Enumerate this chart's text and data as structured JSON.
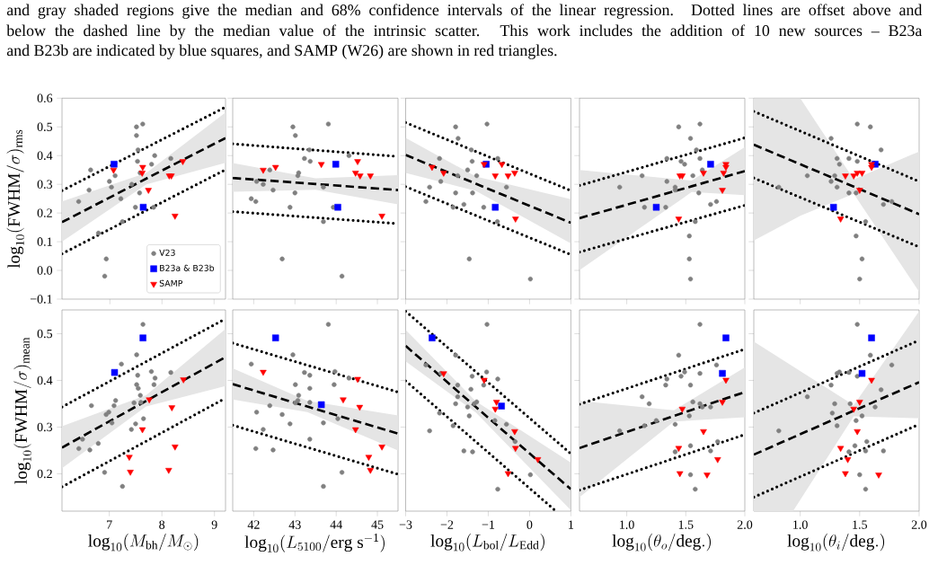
{
  "chart_data": [
    {
      "type": "scatter",
      "annotations": [
        "and gray shaded regions give the median and 68% confidence intervals of the linear regression. Dotted lines are offset above and",
        "below the dashed line by the median value of the intrinsic scatter. This work includes the addition of 10 new sources – B23a",
        "and B23b are indicated by blue squares, and SAMP (W26) are shown in red triangles."
      ],
      "ylabel": "\\log_{10}(\\mathrm{FWHM}/\\sigma)_{\\mathrm{rms}}",
      "xlim": [
        6.08,
        9.22
      ],
      "ylim": [
        -0.1,
        0.6
      ],
      "xticks": [
        7,
        8,
        9
      ],
      "yticks": [
        {
          "value": -0.1,
          "label": "−0.1"
        },
        {
          "value": 0,
          "label": "0.0"
        },
        0.1,
        0.2,
        0.3,
        0.4,
        0.5,
        0.6
      ],
      "tick_labels": "y",
      "legend": "bottom right",
      "series": [
        {
          "name": "V23",
          "color": "#808080",
          "marker": "circle",
          "x": [
            6.4,
            6.6,
            6.63,
            6.99,
            7.03,
            7.1,
            7.21,
            7.24,
            6.78,
            6.93,
            6.9,
            7.42,
            7.49,
            7.51,
            7.51,
            7.54,
            7.53,
            7.57,
            7.58,
            7.63,
            7.8,
            7.86,
            7.84,
            8.17
          ],
          "values": [
            0.24,
            0.28,
            0.35,
            0.31,
            0.29,
            0.33,
            0.25,
            0.17,
            0.13,
            0.04,
            -0.02,
            0.3,
            0.22,
            0.5,
            0.47,
            0.42,
            0.38,
            0.27,
            0.34,
            0.51,
            0.37,
            0.4,
            0.22,
            0.39
          ]
        },
        {
          "name": "B23a & B23b",
          "color": "#0000ff",
          "marker": "square",
          "x": [
            7.08,
            7.64
          ],
          "values": [
            0.37,
            0.22
          ]
        },
        {
          "name": "SAMP",
          "color": "#ff0000",
          "marker": "triangle",
          "x": [
            7.07,
            7.63,
            7.62,
            7.74,
            8.14,
            8.18,
            8.4,
            8.25
          ],
          "values": [
            0.35,
            0.36,
            0.34,
            0.28,
            0.33,
            0.33,
            0.38,
            0.19
          ]
        },
        {
          "type": "line",
          "color": "#000000",
          "line_style": "dashed",
          "x": [
            6.08,
            7.7,
            9.22
          ],
          "values": [
            0.168,
            0.32,
            0.461
          ],
          "lower": [
            0.1,
            0.3,
            0.375
          ],
          "upper": [
            0.24,
            0.34,
            0.55
          ]
        },
        {
          "type": "line",
          "color": "#000000",
          "line_style": "dotted",
          "x": [
            6.08,
            9.22
          ],
          "values": [
            0.278,
            0.569
          ]
        },
        {
          "type": "line",
          "color": "#000000",
          "line_style": "dotted",
          "x": [
            6.08,
            9.22
          ],
          "values": [
            0.058,
            0.351
          ]
        }
      ]
    },
    {
      "type": "scatter",
      "xlim": [
        41.49,
        45.5
      ],
      "ylim": [
        -0.1,
        0.6
      ],
      "xticks": [
        42,
        43,
        44,
        45
      ],
      "yticks": [
        -0.1,
        0,
        0.1,
        0.2,
        0.3,
        0.4,
        0.5,
        0.6
      ],
      "tick_labels": false,
      "series": [
        {
          "color": "#808080",
          "marker": "circle",
          "x": [
            41.94,
            42.05,
            42.07,
            42.23,
            42.39,
            42.47,
            42.69,
            42.88,
            42.95,
            43.01,
            43.0,
            43.07,
            43.09,
            43.23,
            43.35,
            43.37,
            43.69,
            43.69,
            43.81,
            43.93,
            44.14,
            44.31
          ],
          "values": [
            0.25,
            0.24,
            0.31,
            0.3,
            0.35,
            0.28,
            0.04,
            0.22,
            0.5,
            0.47,
            0.27,
            0.33,
            0.34,
            0.39,
            0.42,
            0.38,
            0.29,
            0.17,
            0.51,
            0.22,
            -0.02,
            0.4
          ]
        },
        {
          "color": "#0000ff",
          "marker": "square",
          "x": [
            43.99,
            44.04
          ],
          "values": [
            0.37,
            0.22
          ]
        },
        {
          "color": "#ff0000",
          "marker": "triangle",
          "x": [
            42.23,
            42.53,
            43.64,
            44.47,
            44.52,
            44.58,
            44.83,
            45.11
          ],
          "values": [
            0.35,
            0.36,
            0.37,
            0.34,
            0.38,
            0.33,
            0.33,
            0.19
          ]
        },
        {
          "type": "line",
          "color": "#000000",
          "line_style": "dashed",
          "x": [
            41.49,
            43.5,
            45.5
          ],
          "values": [
            0.322,
            0.301,
            0.28
          ],
          "lower": [
            0.274,
            0.281,
            0.23
          ],
          "upper": [
            0.374,
            0.321,
            0.332
          ]
        },
        {
          "type": "line",
          "color": "#000000",
          "line_style": "dotted",
          "x": [
            41.49,
            45.5
          ],
          "values": [
            0.441,
            0.397
          ]
        },
        {
          "type": "line",
          "color": "#000000",
          "line_style": "dotted",
          "x": [
            41.49,
            45.5
          ],
          "values": [
            0.205,
            0.163
          ]
        }
      ]
    },
    {
      "type": "scatter",
      "xlim": [
        -3,
        1
      ],
      "ylim": [
        -0.1,
        0.6
      ],
      "xticks": [
        -3,
        -2,
        -1,
        0,
        1
      ],
      "yticks": [
        -0.1,
        0,
        0.1,
        0.2,
        0.3,
        0.4,
        0.5,
        0.6
      ],
      "tick_labels": false,
      "series": [
        {
          "color": "#808080",
          "marker": "circle",
          "x": [
            -2.51,
            -2.42,
            -2.18,
            -2.15,
            -1.79,
            -1.73,
            -1.74,
            -1.79,
            -1.85,
            -1.59,
            -1.5,
            -1.46,
            -1.41,
            -1.39,
            -1.38,
            -1.28,
            -1.11,
            -1.03,
            -0.77,
            -0.78,
            -0.56,
            0.02
          ],
          "values": [
            0.24,
            0.29,
            0.39,
            0.31,
            0.5,
            0.46,
            0.33,
            0.27,
            0.22,
            0.23,
            0.35,
            0.04,
            0.42,
            0.38,
            0.27,
            0.33,
            0.22,
            0.51,
            0.39,
            0.17,
            0.29,
            -0.03
          ]
        },
        {
          "color": "#0000ff",
          "marker": "square",
          "x": [
            -1.05,
            -0.83
          ],
          "values": [
            0.37,
            0.22
          ]
        },
        {
          "color": "#ff0000",
          "marker": "triangle",
          "x": [
            -2.36,
            -2.08,
            -1.1,
            -0.83,
            -0.67,
            -0.52,
            -0.36,
            -0.34
          ],
          "values": [
            0.36,
            0.34,
            0.37,
            0.33,
            0.37,
            0.33,
            0.34,
            0.18
          ]
        },
        {
          "type": "line",
          "color": "#000000",
          "line_style": "dashed",
          "x": [
            -3,
            -1.3,
            1
          ],
          "values": [
            0.402,
            0.302,
            0.166
          ],
          "lower": [
            0.34,
            0.277,
            0.094
          ],
          "upper": [
            0.462,
            0.327,
            0.248
          ]
        },
        {
          "type": "line",
          "color": "#000000",
          "line_style": "dotted",
          "x": [
            -3,
            1
          ],
          "values": [
            0.515,
            0.278
          ]
        },
        {
          "type": "line",
          "color": "#000000",
          "line_style": "dotted",
          "x": [
            -3,
            1
          ],
          "values": [
            0.292,
            0.055
          ]
        }
      ]
    },
    {
      "type": "scatter",
      "xlim": [
        0.6,
        2.0
      ],
      "ylim": [
        -0.1,
        0.6
      ],
      "xticks": [
        1.0,
        1.5,
        2.0
      ],
      "yticks": [
        -0.1,
        0,
        0.1,
        0.2,
        0.3,
        0.4,
        0.5,
        0.6
      ],
      "tick_labels": false,
      "series": [
        {
          "color": "#808080",
          "marker": "circle",
          "x": [
            0.94,
            1.13,
            1.15,
            1.33,
            1.34,
            1.34,
            1.41,
            1.41,
            1.44,
            1.46,
            1.49,
            1.53,
            1.53,
            1.54,
            1.54,
            1.56,
            1.58,
            1.59,
            1.61,
            1.62,
            1.62,
            1.64,
            1.71,
            1.76
          ],
          "values": [
            0.29,
            0.33,
            0.22,
            0.22,
            0.39,
            0.31,
            0.29,
            0.28,
            0.5,
            0.38,
            0.37,
            0.12,
            0.04,
            -0.03,
            0.46,
            0.33,
            0.17,
            0.42,
            0.27,
            0.51,
            0.39,
            0.35,
            0.23,
            0.24
          ]
        },
        {
          "color": "#0000ff",
          "marker": "square",
          "x": [
            1.25,
            1.71
          ],
          "values": [
            0.22,
            0.37
          ]
        },
        {
          "color": "#ff0000",
          "marker": "triangle",
          "x": [
            1.44,
            1.45,
            1.47,
            1.65,
            1.81,
            1.82,
            1.84,
            1.84
          ],
          "values": [
            0.18,
            0.33,
            0.33,
            0.34,
            0.28,
            0.34,
            0.36,
            0.37
          ]
        },
        {
          "type": "line",
          "color": "#000000",
          "line_style": "dashed",
          "x": [
            0.6,
            1.55,
            2.0
          ],
          "values": [
            0.182,
            0.293,
            0.346
          ],
          "lower": [
            0.001,
            0.273,
            0.262
          ],
          "upper": [
            0.35,
            0.313,
            0.43
          ]
        },
        {
          "type": "line",
          "color": "#000000",
          "line_style": "dotted",
          "x": [
            0.6,
            2.0
          ],
          "values": [
            0.296,
            0.462
          ]
        },
        {
          "type": "line",
          "color": "#000000",
          "line_style": "dotted",
          "x": [
            0.6,
            2.0
          ],
          "values": [
            0.064,
            0.227
          ]
        }
      ]
    },
    {
      "type": "scatter",
      "xlim": [
        0.61,
        2.0
      ],
      "ylim": [
        -0.1,
        0.6
      ],
      "xticks": [
        1.0,
        1.5,
        2.0
      ],
      "yticks": [
        -0.1,
        0,
        0.1,
        0.2,
        0.3,
        0.4,
        0.5,
        0.6
      ],
      "tick_labels": false,
      "series": [
        {
          "color": "#808080",
          "marker": "circle",
          "x": [
            0.82,
            1.06,
            1.26,
            1.26,
            1.29,
            1.31,
            1.31,
            1.33,
            1.41,
            1.41,
            1.47,
            1.47,
            1.48,
            1.48,
            1.5,
            1.52,
            1.55,
            1.59,
            1.68,
            1.7,
            1.77
          ],
          "values": [
            0.29,
            0.33,
            0.46,
            0.31,
            0.33,
            0.29,
            0.39,
            0.37,
            0.39,
            0.27,
            0.27,
            0.12,
            0.51,
            0.38,
            -0.03,
            0.04,
            0.17,
            0.5,
            0.42,
            0.23,
            0.24
          ]
        },
        {
          "color": "#0000ff",
          "marker": "square",
          "x": [
            1.28,
            1.63
          ],
          "values": [
            0.22,
            0.37
          ]
        },
        {
          "color": "#ff0000",
          "marker": "triangle",
          "x": [
            1.34,
            1.38,
            1.45,
            1.48,
            1.5,
            1.52,
            1.6,
            1.6
          ],
          "values": [
            0.18,
            0.33,
            0.33,
            0.34,
            0.28,
            0.34,
            0.36,
            0.37
          ]
        },
        {
          "type": "line",
          "color": "#000000",
          "line_style": "dashed",
          "x": [
            0.61,
            1.0,
            1.45,
            2.0
          ],
          "values": [
            0.438,
            0.37,
            0.292,
            0.196
          ],
          "lower": [
            0.104,
            0.19,
            0.267,
            -0.074
          ],
          "upper": [
            0.6,
            0.6,
            0.317,
            0.414
          ]
        },
        {
          "type": "line",
          "color": "#000000",
          "line_style": "dotted",
          "x": [
            0.61,
            2.0
          ],
          "values": [
            0.554,
            0.31
          ]
        },
        {
          "type": "line",
          "color": "#000000",
          "line_style": "dotted",
          "x": [
            0.61,
            2.0
          ],
          "values": [
            0.322,
            0.082
          ]
        }
      ]
    },
    {
      "type": "scatter",
      "xlabel": "\\log_{10}(M_{\\mathrm{bh}}/M_{\\odot})",
      "ylabel": "\\log_{10}(\\mathrm{FWHM}/\\sigma)_{\\mathrm{mean}}",
      "xlim": [
        6.1,
        9.21
      ],
      "ylim": [
        0.12,
        0.551
      ],
      "xticks": [
        7,
        8,
        9
      ],
      "yticks": [
        0.2,
        0.3,
        0.4,
        0.5
      ],
      "series": [
        {
          "color": "#808080",
          "marker": "circle",
          "x": [
            6.42,
            6.49,
            6.63,
            6.66,
            6.79,
            6.91,
            6.94,
            6.99,
            7.05,
            7.09,
            7.12,
            7.23,
            7.25,
            7.42,
            7.47,
            7.5,
            7.52,
            7.52,
            7.54,
            7.55,
            7.59,
            7.6,
            7.64,
            7.65,
            7.8,
            7.85,
            7.87,
            8.17
          ],
          "values": [
            0.254,
            0.274,
            0.251,
            0.346,
            0.265,
            0.203,
            0.327,
            0.332,
            0.309,
            0.346,
            0.357,
            0.435,
            0.173,
            0.295,
            0.352,
            0.307,
            0.455,
            0.391,
            0.411,
            0.383,
            0.368,
            0.353,
            0.52,
            0.318,
            0.419,
            0.391,
            0.405,
            0.417
          ]
        },
        {
          "color": "#0000ff",
          "marker": "square",
          "x": [
            7.1,
            7.64
          ],
          "values": [
            0.417,
            0.491
          ]
        },
        {
          "color": "#ff0000",
          "marker": "triangle",
          "x": [
            7.38,
            7.4,
            7.63,
            7.76,
            8.13,
            8.19,
            8.25,
            8.41
          ],
          "values": [
            0.236,
            0.204,
            0.295,
            0.359,
            0.208,
            0.342,
            0.258,
            0.402
          ]
        },
        {
          "type": "line",
          "color": "#000000",
          "line_style": "dashed",
          "x": [
            6.1,
            7.7,
            9.21
          ],
          "values": [
            0.256,
            0.356,
            0.45
          ],
          "lower": [
            0.212,
            0.344,
            0.388
          ],
          "upper": [
            0.302,
            0.368,
            0.51
          ]
        },
        {
          "type": "line",
          "color": "#000000",
          "line_style": "dotted",
          "x": [
            6.1,
            9.21
          ],
          "values": [
            0.343,
            0.532
          ]
        },
        {
          "type": "line",
          "color": "#000000",
          "line_style": "dotted",
          "x": [
            6.1,
            9.21
          ],
          "values": [
            0.172,
            0.362
          ]
        }
      ]
    },
    {
      "type": "scatter",
      "xlabel": "\\log_{10}(L_{5100}/\\mathrm{erg\\ s^{-1}})",
      "xlim": [
        41.49,
        45.5
      ],
      "ylim": [
        0.12,
        0.551
      ],
      "xticks": [
        42,
        43,
        44,
        45
      ],
      "yticks": [
        0.2,
        0.3,
        0.4,
        0.5
      ],
      "tick_labels": "x",
      "series": [
        {
          "color": "#808080",
          "marker": "circle",
          "x": [
            41.94,
            42.05,
            42.07,
            42.23,
            42.39,
            42.47,
            42.69,
            42.88,
            42.95,
            43.01,
            43.01,
            43.07,
            43.09,
            43.23,
            43.36,
            43.36,
            43.36,
            43.36,
            43.69,
            43.69,
            43.81,
            43.95,
            43.97,
            44.04,
            44.14,
            44.31
          ],
          "values": [
            0.435,
            0.254,
            0.332,
            0.295,
            0.346,
            0.251,
            0.327,
            0.307,
            0.455,
            0.391,
            0.352,
            0.357,
            0.368,
            0.417,
            0.411,
            0.383,
            0.353,
            0.274,
            0.309,
            0.173,
            0.52,
            0.391,
            0.419,
            0.318,
            0.203,
            0.405
          ]
        },
        {
          "color": "#0000ff",
          "marker": "square",
          "x": [
            42.53,
            43.64
          ],
          "values": [
            0.491,
            0.348
          ]
        },
        {
          "color": "#ff0000",
          "marker": "triangle",
          "x": [
            42.23,
            44.17,
            44.47,
            44.52,
            44.57,
            44.79,
            44.83,
            45.11
          ],
          "values": [
            0.418,
            0.359,
            0.295,
            0.403,
            0.343,
            0.236,
            0.208,
            0.258
          ]
        },
        {
          "type": "line",
          "color": "#000000",
          "line_style": "dashed",
          "x": [
            41.49,
            43.3,
            45.5
          ],
          "values": [
            0.392,
            0.344,
            0.286
          ],
          "lower": [
            0.359,
            0.332,
            0.25
          ],
          "upper": [
            0.426,
            0.356,
            0.325
          ]
        },
        {
          "type": "line",
          "color": "#000000",
          "line_style": "dotted",
          "x": [
            41.49,
            45.5
          ],
          "values": [
            0.48,
            0.375
          ]
        },
        {
          "type": "line",
          "color": "#000000",
          "line_style": "dotted",
          "x": [
            41.49,
            45.5
          ],
          "values": [
            0.304,
            0.199
          ]
        }
      ]
    },
    {
      "type": "scatter",
      "xlabel": "\\log_{10}(L_{\\mathrm{bol}}/L_{\\mathrm{Edd}})",
      "xlim": [
        -3,
        1
      ],
      "ylim": [
        0.12,
        0.551
      ],
      "xticks": [
        {
          "value": -3,
          "label": "−3"
        },
        {
          "value": -2,
          "label": "−2"
        },
        {
          "value": -1,
          "label": "−1"
        },
        0,
        1
      ],
      "yticks": [
        0.2,
        0.3,
        0.4,
        0.5
      ],
      "tick_labels": "x",
      "series": [
        {
          "color": "#808080",
          "marker": "circle",
          "x": [
            -2.51,
            -2.42,
            -2.18,
            -2.15,
            -1.85,
            -1.79,
            -1.79,
            -1.74,
            -1.74,
            -1.59,
            -1.5,
            -1.46,
            -1.42,
            -1.39,
            -1.38,
            -1.34,
            -1.28,
            -1.11,
            -1.04,
            -1.03,
            -0.84,
            -0.77,
            -0.77,
            -0.56,
            -0.35,
            0.02
          ],
          "values": [
            0.433,
            0.292,
            0.33,
            0.415,
            0.303,
            0.454,
            0.35,
            0.365,
            0.39,
            0.249,
            0.343,
            0.324,
            0.381,
            0.409,
            0.247,
            0.35,
            0.354,
            0.39,
            0.418,
            0.52,
            0.314,
            0.403,
            0.167,
            0.306,
            0.269,
            0.198
          ]
        },
        {
          "color": "#0000ff",
          "marker": "square",
          "x": [
            -2.36,
            -0.68
          ],
          "values": [
            0.491,
            0.345
          ]
        },
        {
          "color": "#ff0000",
          "marker": "triangle",
          "x": [
            -2.08,
            -1.1,
            -0.83,
            -0.8,
            -0.36,
            -0.34,
            -0.52,
            0.2
          ],
          "values": [
            0.415,
            0.401,
            0.339,
            0.354,
            0.291,
            0.255,
            0.201,
            0.231
          ]
        },
        {
          "type": "line",
          "color": "#000000",
          "line_style": "dashed",
          "x": [
            -3,
            -1.3,
            1
          ],
          "values": [
            0.474,
            0.343,
            0.167
          ],
          "lower": [
            0.441,
            0.331,
            0.122
          ],
          "upper": [
            0.508,
            0.355,
            0.224
          ]
        },
        {
          "type": "line",
          "color": "#000000",
          "line_style": "dotted",
          "x": [
            -3,
            1
          ],
          "values": [
            0.548,
            0.243
          ]
        },
        {
          "type": "line",
          "color": "#000000",
          "line_style": "dotted",
          "x": [
            -3,
            0.6
          ],
          "values": [
            0.399,
            0.123
          ]
        }
      ]
    },
    {
      "type": "scatter",
      "xlabel": "\\log_{10}(\\theta_o/\\mathrm{deg.})",
      "xlim": [
        0.6,
        2.0
      ],
      "ylim": [
        0.12,
        0.551
      ],
      "xticks": [
        {
          "value": 1,
          "label": "1.0"
        },
        1.5,
        {
          "value": 2,
          "label": "2.0"
        }
      ],
      "yticks": [
        0.2,
        0.3,
        0.4,
        0.5
      ],
      "tick_labels": "x",
      "series": [
        {
          "color": "#808080",
          "marker": "circle",
          "x": [
            0.94,
            1.13,
            1.19,
            1.15,
            1.25,
            1.33,
            1.34,
            1.41,
            1.41,
            1.44,
            1.46,
            1.49,
            1.53,
            1.54,
            1.54,
            1.54,
            1.56,
            1.58,
            1.62,
            1.62,
            1.62,
            1.64,
            1.71,
            1.71,
            1.76,
            1.77
          ],
          "values": [
            0.292,
            0.365,
            0.35,
            0.303,
            0.314,
            0.39,
            0.403,
            0.306,
            0.247,
            0.454,
            0.409,
            0.418,
            0.324,
            0.26,
            0.198,
            0.39,
            0.354,
            0.167,
            0.52,
            0.415,
            0.35,
            0.343,
            0.343,
            0.249,
            0.433,
            0.269
          ]
        },
        {
          "color": "#0000ff",
          "marker": "square",
          "x": [
            1.84,
            1.81
          ],
          "values": [
            0.491,
            0.415
          ]
        },
        {
          "color": "#ff0000",
          "marker": "triangle",
          "x": [
            1.44,
            1.45,
            1.47,
            1.65,
            1.68,
            1.77,
            1.81,
            1.84
          ],
          "values": [
            0.255,
            0.201,
            0.339,
            0.291,
            0.198,
            0.231,
            0.354,
            0.401
          ]
        },
        {
          "type": "line",
          "color": "#000000",
          "line_style": "dashed",
          "x": [
            0.6,
            1.4,
            2.0
          ],
          "values": [
            0.255,
            0.324,
            0.375
          ],
          "lower": [
            0.15,
            0.312,
            0.321
          ],
          "upper": [
            0.356,
            0.336,
            0.428
          ]
        },
        {
          "type": "line",
          "color": "#000000",
          "line_style": "dotted",
          "x": [
            0.6,
            2.0
          ],
          "values": [
            0.349,
            0.467
          ]
        },
        {
          "type": "line",
          "color": "#000000",
          "line_style": "dotted",
          "x": [
            0.6,
            2.0
          ],
          "values": [
            0.165,
            0.284
          ]
        }
      ]
    },
    {
      "type": "scatter",
      "xlabel": "\\log_{10}(\\theta_i/\\mathrm{deg.})",
      "xlim": [
        0.61,
        2.0
      ],
      "ylim": [
        0.12,
        0.551
      ],
      "xticks": [
        {
          "value": 1,
          "label": "1.0"
        },
        1.5,
        {
          "value": 2,
          "label": "2.0"
        }
      ],
      "yticks": [
        0.2,
        0.3,
        0.4,
        0.5
      ],
      "tick_labels": "x",
      "series": [
        {
          "color": "#808080",
          "marker": "circle",
          "x": [
            0.82,
            1.06,
            1.26,
            1.27,
            1.29,
            1.31,
            1.31,
            1.33,
            1.41,
            1.41,
            1.42,
            1.46,
            1.47,
            1.48,
            1.48,
            1.5,
            1.52,
            1.55,
            1.55,
            1.59,
            1.63,
            1.56,
            1.68,
            1.7,
            1.77
          ],
          "values": [
            0.292,
            0.365,
            0.39,
            0.33,
            0.35,
            0.303,
            0.415,
            0.418,
            0.247,
            0.417,
            0.35,
            0.26,
            0.314,
            0.52,
            0.409,
            0.198,
            0.324,
            0.249,
            0.167,
            0.454,
            0.343,
            0.269,
            0.38,
            0.249,
            0.433
          ]
        },
        {
          "color": "#0000ff",
          "marker": "square",
          "x": [
            1.6,
            1.52
          ],
          "values": [
            0.491,
            0.415
          ]
        },
        {
          "color": "#ff0000",
          "marker": "triangle",
          "x": [
            1.34,
            1.38,
            1.4,
            1.45,
            1.48,
            1.5,
            1.6,
            1.66
          ],
          "values": [
            0.255,
            0.201,
            0.231,
            0.339,
            0.291,
            0.354,
            0.401,
            0.198
          ]
        },
        {
          "type": "line",
          "color": "#000000",
          "line_style": "dashed",
          "x": [
            0.61,
            0.94,
            1.45,
            2.0
          ],
          "values": [
            0.241,
            0.278,
            0.335,
            0.396
          ],
          "lower": [
            0.12,
            0.12,
            0.323,
            0.319
          ],
          "upper": [
            0.483,
            0.43,
            0.347,
            0.548
          ]
        },
        {
          "type": "line",
          "color": "#000000",
          "line_style": "dotted",
          "x": [
            0.61,
            2.0
          ],
          "values": [
            0.33,
            0.486
          ]
        },
        {
          "type": "line",
          "color": "#000000",
          "line_style": "dotted",
          "x": [
            0.61,
            2.0
          ],
          "values": [
            0.15,
            0.306
          ]
        }
      ]
    }
  ]
}
